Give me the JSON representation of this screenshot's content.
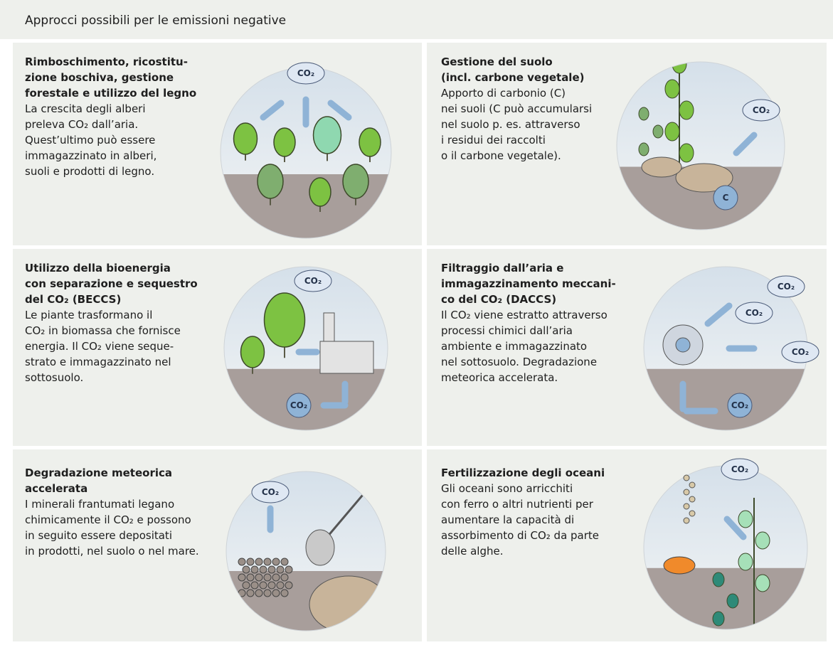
{
  "header": {
    "title": "Approcci possibili per le emissioni negative"
  },
  "panels": [
    {
      "title_lines": [
        "Rimboschimento, ricostitu-",
        "zione boschiva, gestione",
        "forestale e utilizzo del legno"
      ],
      "body_lines": [
        "La crescita degli alberi",
        "preleva CO₂ dall’aria.",
        "Quest’ultimo può essere",
        "immagazzinato in alberi,",
        "suoli e prodotti di legno."
      ],
      "labels": [
        "CO₂"
      ]
    },
    {
      "title_lines": [
        "Gestione del suolo",
        "(incl. carbone vegetale)"
      ],
      "body_lines": [
        "Apporto di carbonio (C)",
        "nei suoli (C può accumularsi",
        "nel suolo p. es. attraverso",
        "i residui dei raccolti",
        "o il carbone vegetale)."
      ],
      "labels": [
        "CO₂",
        "C"
      ]
    },
    {
      "title_lines": [
        "Utilizzo della bioenergia",
        "con separazione e sequestro",
        "del CO₂ (BECCS)"
      ],
      "body_lines": [
        "Le piante trasformano il",
        "CO₂ in biomassa che fornisce",
        "energia. Il CO₂ viene seque-",
        "strato e immagazzinato nel",
        "sottosuolo."
      ],
      "labels": [
        "CO₂",
        "CO₂"
      ]
    },
    {
      "title_lines": [
        "Filtraggio dall’aria e",
        "immagazzinamento meccani-",
        "co del CO₂ (DACCS)"
      ],
      "body_lines": [
        "Il CO₂ viene estratto attraverso",
        "processi chimici dall’aria",
        "ambiente e immagazzinato",
        "nel sottosuolo. Degradazione",
        "meteorica accelerata."
      ],
      "labels": [
        "CO₂",
        "CO₂",
        "CO₂",
        "CO₂"
      ]
    },
    {
      "title_lines": [
        "Degradazione meteorica",
        "accelerata"
      ],
      "body_lines": [
        "I minerali frantumati legano",
        "chimicamente il CO₂ e possono",
        "in seguito essere depositati",
        "in prodotti, nel suolo o nel mare."
      ],
      "labels": [
        "CO₂"
      ]
    },
    {
      "title_lines": [
        "Fertilizzazione degli oceani"
      ],
      "body_lines": [
        "Gli oceani sono arricchiti",
        "con ferro o altri nutrienti per",
        "aumentare la capacità di",
        "assorbimento di CO₂ da parte",
        "delle alghe."
      ],
      "labels": [
        "CO₂"
      ]
    }
  ]
}
